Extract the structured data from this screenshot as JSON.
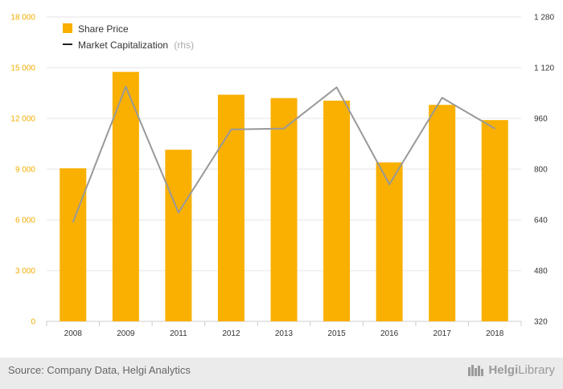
{
  "chart_data": {
    "type": "bar+line",
    "categories": [
      "2008",
      "2009",
      "2011",
      "2012",
      "2013",
      "2015",
      "2016",
      "2017",
      "2018"
    ],
    "series": [
      {
        "name": "Share Price",
        "type": "bar",
        "axis": "left",
        "color": "#f9b000",
        "values": [
          9050,
          14750,
          10150,
          13400,
          13200,
          13050,
          9400,
          12800,
          11900
        ]
      },
      {
        "name": "Market Capitalization",
        "name_suffix": "(rhs)",
        "type": "line",
        "axis": "right",
        "color": "#999999",
        "values": [
          633,
          1060,
          663,
          925,
          928,
          1058,
          752,
          1025,
          928
        ]
      }
    ],
    "left_axis": {
      "ylim": [
        0,
        18000
      ],
      "ticks": [
        0,
        3000,
        6000,
        9000,
        12000,
        15000,
        18000
      ],
      "tick_labels": [
        "0",
        "3 000",
        "6 000",
        "9 000",
        "12 000",
        "15 000",
        "18 000"
      ]
    },
    "right_axis": {
      "ylim": [
        320,
        1280
      ],
      "ticks": [
        320,
        480,
        640,
        800,
        960,
        1120,
        1280
      ],
      "tick_labels": [
        "320",
        "480",
        "640",
        "800",
        "960",
        "1 120",
        "1 280"
      ]
    },
    "grid": true,
    "legend_position": "top-left"
  },
  "footer": {
    "source": "Source: Company Data, Helgi Analytics",
    "brand_a": "Helgi",
    "brand_b": "Library"
  }
}
